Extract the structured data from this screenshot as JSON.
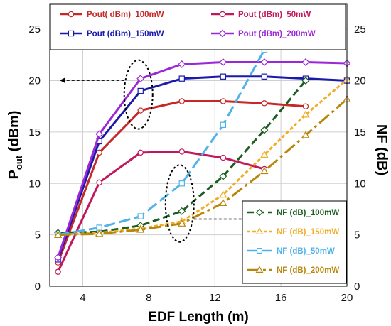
{
  "chart_data": {
    "type": "line",
    "xlabel": "EDF Length (m)",
    "ylabel_left": {
      "main": "P",
      "sub": "out",
      "unit": "(dBm)"
    },
    "ylabel_right": "NF (dB)",
    "xlim": [
      2,
      20
    ],
    "ylim_left": [
      0,
      27.5
    ],
    "ylim_right": [
      0,
      27.5
    ],
    "xticks": [
      4,
      8,
      12,
      16,
      20
    ],
    "yticks_left": [
      0,
      5,
      10,
      15,
      20,
      25
    ],
    "yticks_right": [
      0,
      5,
      10,
      15,
      20,
      25
    ],
    "grid": true,
    "series": [
      {
        "name": "Pout( dBm)_100mW",
        "axis": "left",
        "color": "#c62828",
        "marker": "circle",
        "dash": "solid",
        "x": [
          2.5,
          5,
          7.5,
          10,
          12.5,
          15,
          17.5
        ],
        "values": [
          2.3,
          13.0,
          17.1,
          18.0,
          18.0,
          17.8,
          17.5
        ]
      },
      {
        "name": "Pout (dBm)_50mW",
        "axis": "left",
        "color": "#c2185b",
        "marker": "circle",
        "dash": "solid",
        "x": [
          2.5,
          5,
          7.5,
          10,
          12.5,
          15
        ],
        "values": [
          1.4,
          10.1,
          13.0,
          13.1,
          12.5,
          11.4
        ]
      },
      {
        "name": "Pout (dBm)_150mW",
        "axis": "left",
        "color": "#1a1aaa",
        "marker": "square",
        "dash": "solid",
        "x": [
          2.5,
          5,
          7.5,
          10,
          12.5,
          15,
          17.5,
          20
        ],
        "values": [
          2.6,
          14.1,
          19.0,
          20.2,
          20.4,
          20.4,
          20.2,
          20.0
        ]
      },
      {
        "name": "Pout (dBm)_200mW",
        "axis": "left",
        "color": "#9c27d6",
        "marker": "diamond",
        "dash": "solid",
        "x": [
          2.5,
          5,
          7.5,
          10,
          12.5,
          15,
          17.5,
          20
        ],
        "values": [
          2.8,
          14.8,
          20.2,
          21.6,
          21.8,
          21.8,
          21.8,
          21.7
        ]
      },
      {
        "name": "NF (dB)_100mW",
        "axis": "right",
        "color": "#1b5e20",
        "marker": "diamond",
        "dash": "10 5",
        "x": [
          2.5,
          5,
          7.5,
          10,
          12.5,
          15,
          17.5
        ],
        "values": [
          5.2,
          5.3,
          5.9,
          7.3,
          10.7,
          15.2,
          20.0
        ]
      },
      {
        "name": "NF (dB)_150mW",
        "axis": "right",
        "color": "#f0ad28",
        "marker": "triangle",
        "dash": "5 3",
        "x": [
          2.5,
          5,
          7.5,
          10,
          12.5,
          15,
          17.5,
          20
        ],
        "values": [
          5.0,
          5.2,
          5.6,
          6.3,
          8.9,
          12.8,
          16.7,
          20.1
        ]
      },
      {
        "name": "NF (dB)_50mW",
        "axis": "right",
        "color": "#4fb3ea",
        "marker": "square",
        "dash": "16 6",
        "x": [
          2.5,
          5,
          7.5,
          10,
          12.5,
          15
        ],
        "values": [
          5.0,
          5.7,
          6.8,
          10.0,
          15.7,
          23.0
        ]
      },
      {
        "name": "NF (dB)_200mW",
        "axis": "right",
        "color": "#b8860b",
        "marker": "triangle",
        "dash": "18 5 4 5",
        "x": [
          2.5,
          5,
          7.5,
          10,
          12.5,
          15,
          17.5,
          20
        ],
        "values": [
          5.0,
          5.1,
          5.5,
          6.1,
          8.1,
          11.2,
          14.7,
          18.2
        ]
      }
    ],
    "legend_top": {
      "placement": "top",
      "entries": [
        "Pout( dBm)_100mW",
        "Pout (dBm)_50mW",
        "Pout (dBm)_150mW",
        "Pout (dBm)_200mW"
      ]
    },
    "legend_bottom": {
      "placement": "bottom-right",
      "entries": [
        "NF (dB)_100mW",
        "NF (dB)_150mW",
        "NF (dB)_50mW",
        "NF (dB)_200mW"
      ]
    },
    "annotations": [
      {
        "type": "ellipse-arrow",
        "target_axis": "left",
        "around_x": 7.5,
        "around_values": [
          17.1,
          20.2
        ],
        "direction": "left"
      },
      {
        "type": "ellipse-arrow",
        "target_axis": "right",
        "around_x": 10,
        "around_values": [
          6.1,
          10.0
        ],
        "direction": "right"
      }
    ]
  }
}
